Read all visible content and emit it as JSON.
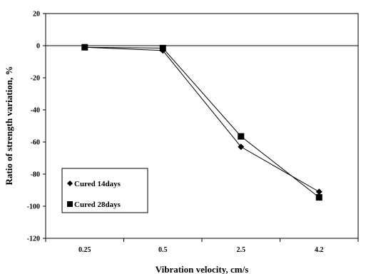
{
  "chart_data": {
    "type": "line",
    "categories": [
      "0.25",
      "0.5",
      "2.5",
      "4.2"
    ],
    "xlabel": "Vibration velocity, cm/s",
    "ylabel": "Ratio of strength variation, %",
    "ylim": [
      -120,
      20
    ],
    "yticks": [
      20,
      0,
      -20,
      -40,
      -60,
      -80,
      -100,
      -120
    ],
    "grid": false,
    "zero_line": true,
    "legend_position": "bottom-left",
    "series": [
      {
        "name": "Cured 14days",
        "marker": "diamond",
        "color": "#000000",
        "values": [
          -1,
          -3,
          -63,
          -91
        ]
      },
      {
        "name": "Cured 28days",
        "marker": "square",
        "color": "#000000",
        "values": [
          -1,
          -1.5,
          -56.5,
          -94.5
        ]
      }
    ]
  }
}
